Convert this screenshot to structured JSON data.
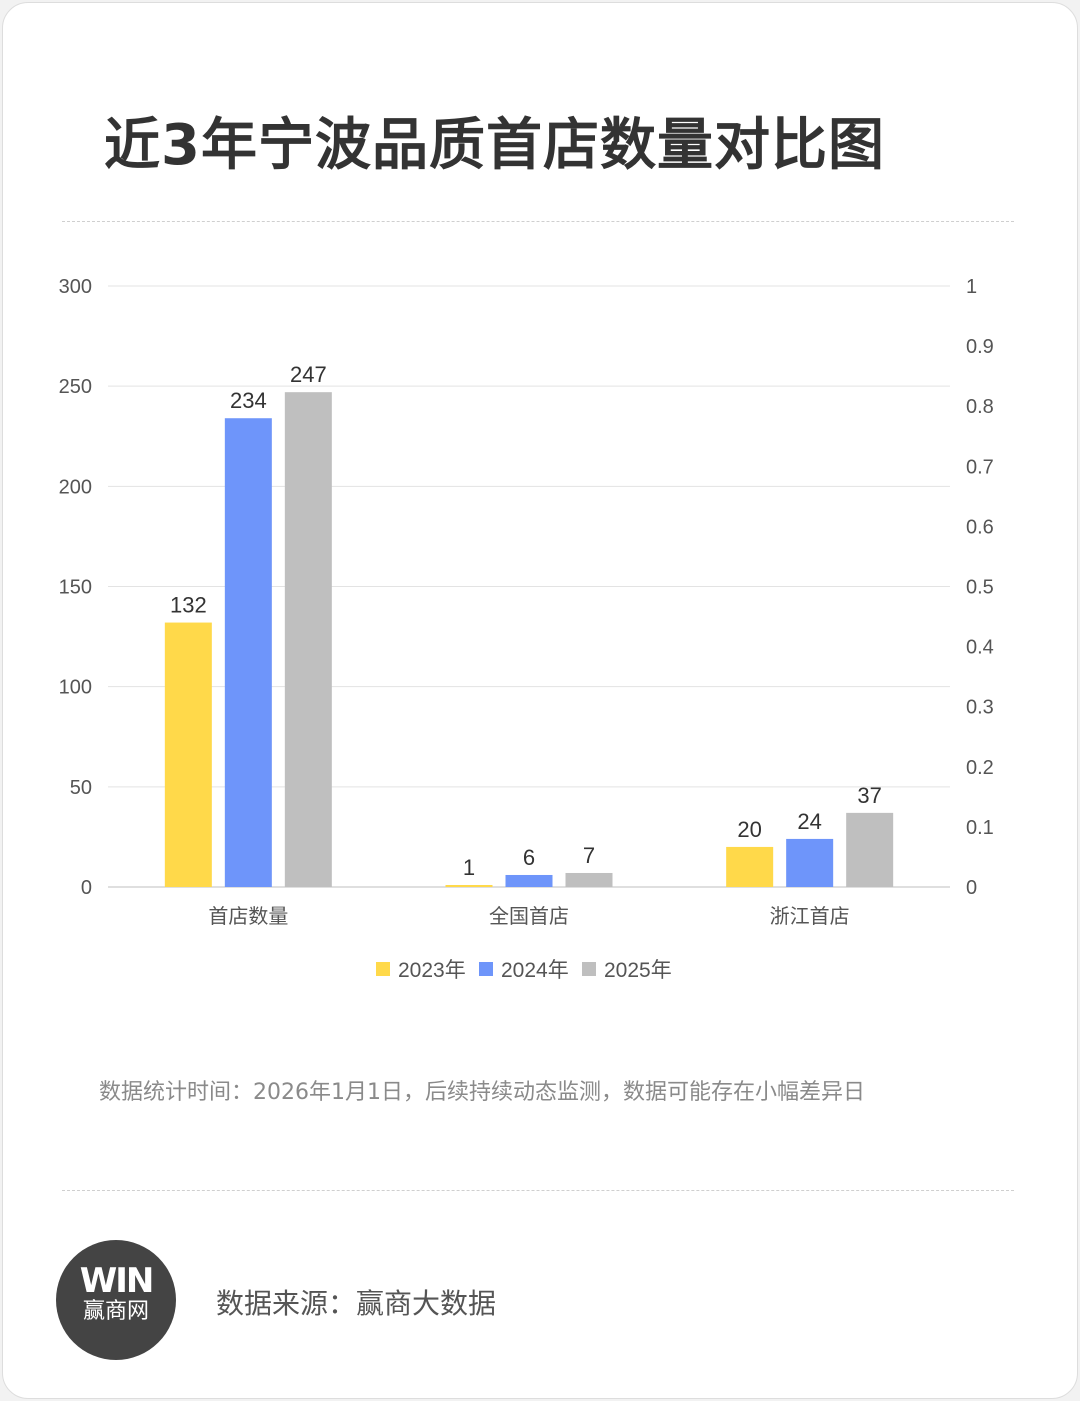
{
  "title": "近3年宁波品质首店数量对比图",
  "note": "数据统计时间：2026年1月1日，后续持续动态监测，数据可能存在小幅差异日",
  "source": "数据来源：赢商大数据",
  "logo": {
    "mark": "WIN",
    "name": "赢商网"
  },
  "chart_data": {
    "type": "bar",
    "categories": [
      "首店数量",
      "全国首店",
      "浙江首店"
    ],
    "series": [
      {
        "name": "2023年",
        "color": "#FFD94A",
        "values": [
          132,
          1,
          20
        ]
      },
      {
        "name": "2024年",
        "color": "#6E95FA",
        "values": [
          234,
          6,
          24
        ]
      },
      {
        "name": "2025年",
        "color": "#BFBFBF",
        "values": [
          247,
          7,
          37
        ]
      }
    ],
    "ylim": [
      0,
      300
    ],
    "yticks": [
      "0",
      "50",
      "100",
      "150",
      "200",
      "250",
      "300"
    ],
    "y2lim": [
      0,
      1
    ],
    "y2ticks": [
      "0",
      "0.1",
      "0.2",
      "0.3",
      "0.4",
      "0.5",
      "0.6",
      "0.7",
      "0.8",
      "0.9",
      "1"
    ],
    "grid": true,
    "legend": "bottom",
    "data_labels": true
  }
}
